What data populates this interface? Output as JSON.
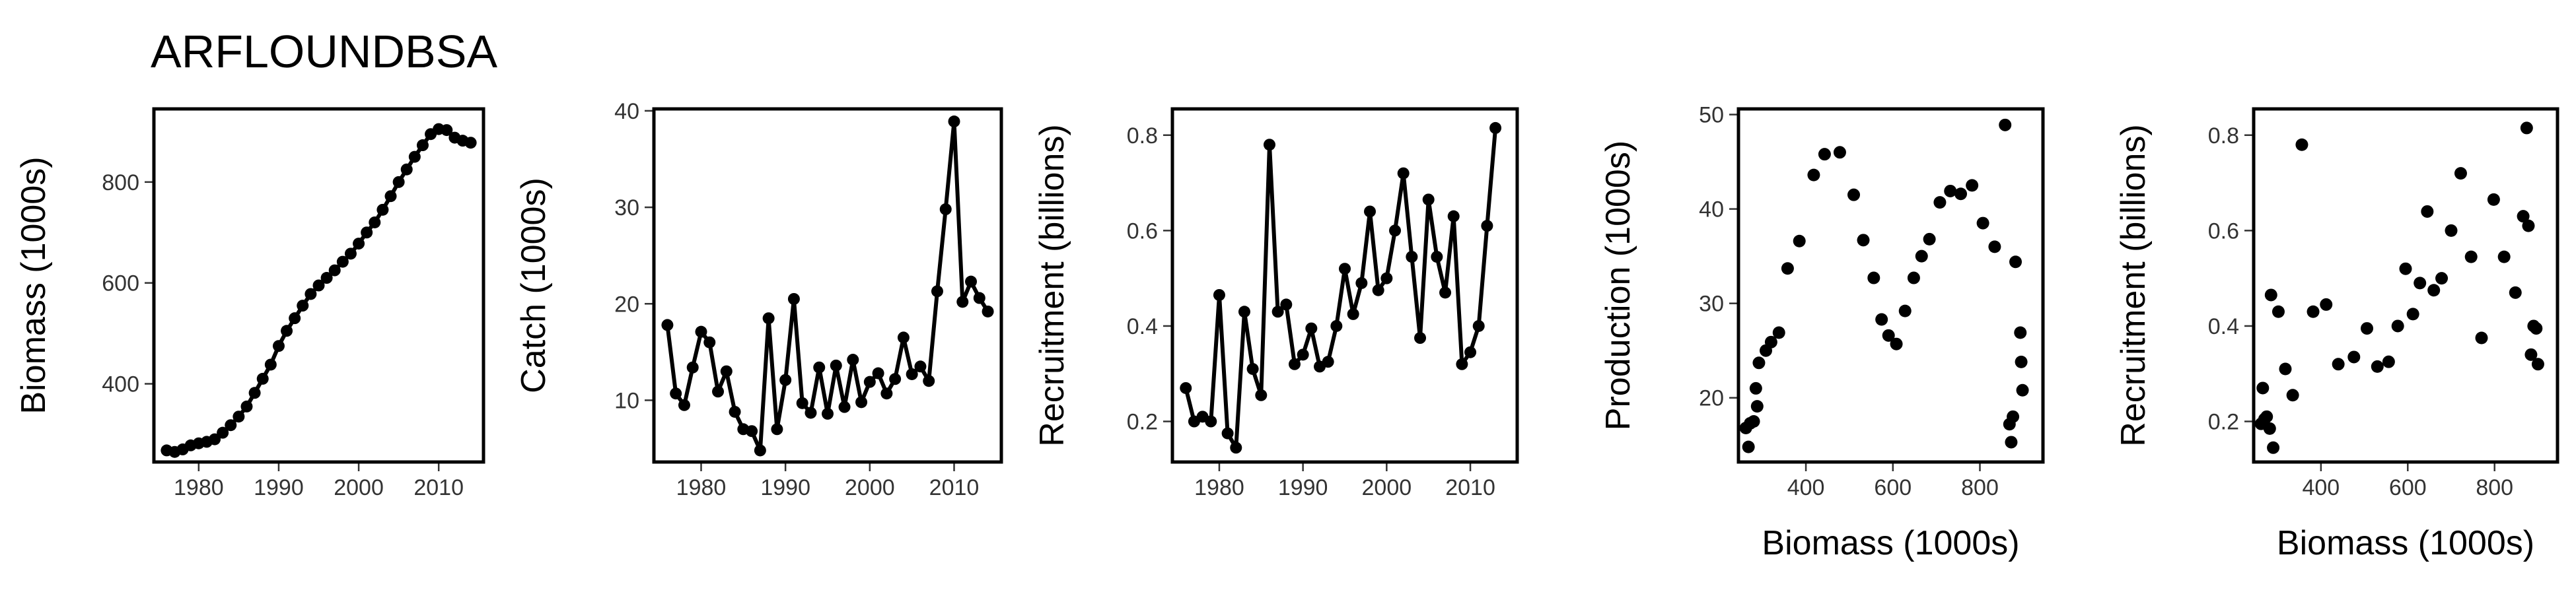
{
  "figure": {
    "title": "ARFLOUNDBSA"
  },
  "chart_data": [
    {
      "type": "line",
      "title": "",
      "xlabel": "",
      "ylabel": "Biomass (1000s)",
      "xlim": [
        1974.4,
        2015.6
      ],
      "ylim": [
        245,
        945
      ],
      "xticks": [
        1980,
        1990,
        2000,
        2010
      ],
      "yticks": [
        400,
        600,
        800
      ],
      "markers": true,
      "x": [
        1976,
        1977,
        1978,
        1979,
        1980,
        1981,
        1982,
        1983,
        1984,
        1985,
        1986,
        1987,
        1988,
        1989,
        1990,
        1991,
        1992,
        1993,
        1994,
        1995,
        1996,
        1997,
        1998,
        1999,
        2000,
        2001,
        2002,
        2003,
        2004,
        2005,
        2006,
        2007,
        2008,
        2009,
        2010,
        2011,
        2012,
        2013,
        2014
      ],
      "y": [
        268,
        265,
        270,
        278,
        282,
        285,
        290,
        303,
        318,
        335,
        355,
        382,
        410,
        438,
        475,
        505,
        530,
        555,
        578,
        595,
        610,
        625,
        642,
        658,
        678,
        700,
        720,
        745,
        772,
        800,
        825,
        850,
        873,
        895,
        905,
        903,
        888,
        882,
        878
      ]
    },
    {
      "type": "line",
      "title": "",
      "xlabel": "",
      "ylabel": "Catch (1000s)",
      "xlim": [
        1974.4,
        2015.6
      ],
      "ylim": [
        3.6,
        40.2
      ],
      "xticks": [
        1980,
        1990,
        2000,
        2010
      ],
      "yticks": [
        10,
        20,
        30,
        40
      ],
      "markers": true,
      "x": [
        1976,
        1977,
        1978,
        1979,
        1980,
        1981,
        1982,
        1983,
        1984,
        1985,
        1986,
        1987,
        1988,
        1989,
        1990,
        1991,
        1992,
        1993,
        1994,
        1995,
        1996,
        1997,
        1998,
        1999,
        2000,
        2001,
        2002,
        2003,
        2004,
        2005,
        2006,
        2007,
        2008,
        2009,
        2010,
        2011,
        2012,
        2013,
        2014
      ],
      "y": [
        17.8,
        10.7,
        9.5,
        13.4,
        17.1,
        16,
        10.9,
        13,
        8.8,
        7,
        6.8,
        4.8,
        18.5,
        7,
        12.1,
        20.5,
        9.7,
        8.7,
        13.4,
        8.6,
        13.6,
        9.3,
        14.2,
        9.8,
        11.9,
        12.8,
        10.7,
        12.2,
        16.5,
        12.7,
        13.5,
        12,
        21.3,
        29.8,
        38.9,
        20.2,
        22.3,
        20.6,
        19.2
      ]
    },
    {
      "type": "line",
      "title": "",
      "xlabel": "",
      "ylabel": "Recruitment (billions)",
      "xlim": [
        1974.4,
        2015.6
      ],
      "ylim": [
        0.115,
        0.855
      ],
      "xticks": [
        1980,
        1990,
        2000,
        2010
      ],
      "yticks": [
        0.2,
        0.4,
        0.6,
        0.8
      ],
      "markers": true,
      "x": [
        1976,
        1977,
        1978,
        1979,
        1980,
        1981,
        1982,
        1983,
        1984,
        1985,
        1986,
        1987,
        1988,
        1989,
        1990,
        1991,
        1992,
        1993,
        1994,
        1995,
        1996,
        1997,
        1998,
        1999,
        2000,
        2001,
        2002,
        2003,
        2004,
        2005,
        2006,
        2007,
        2008,
        2009,
        2010,
        2011,
        2012,
        2013
      ],
      "y": [
        0.27,
        0.2,
        0.21,
        0.2,
        0.465,
        0.175,
        0.145,
        0.43,
        0.31,
        0.255,
        0.78,
        0.43,
        0.445,
        0.32,
        0.34,
        0.395,
        0.315,
        0.325,
        0.4,
        0.52,
        0.425,
        0.49,
        0.64,
        0.475,
        0.5,
        0.6,
        0.72,
        0.545,
        0.375,
        0.665,
        0.545,
        0.47,
        0.63,
        0.32,
        0.345,
        0.4,
        0.61,
        0.815
      ]
    },
    {
      "type": "scatter",
      "title": "",
      "xlabel": "Biomass (1000s)",
      "ylabel": "Production (1000s)",
      "xlim": [
        245,
        945
      ],
      "ylim": [
        13.2,
        50.6
      ],
      "xticks": [
        400,
        600,
        800
      ],
      "yticks": [
        20,
        30,
        40,
        50
      ],
      "points": [
        [
          262,
          16.8
        ],
        [
          268,
          14.8
        ],
        [
          272,
          17.3
        ],
        [
          280,
          17.5
        ],
        [
          285,
          21
        ],
        [
          288,
          19.1
        ],
        [
          292,
          23.7
        ],
        [
          308,
          25
        ],
        [
          320,
          25.9
        ],
        [
          338,
          26.9
        ],
        [
          358,
          33.7
        ],
        [
          385,
          36.6
        ],
        [
          418,
          43.6
        ],
        [
          443,
          45.8
        ],
        [
          478,
          46
        ],
        [
          510,
          41.5
        ],
        [
          532,
          36.7
        ],
        [
          556,
          32.7
        ],
        [
          574,
          28.3
        ],
        [
          590,
          26.6
        ],
        [
          608,
          25.7
        ],
        [
          628,
          29.2
        ],
        [
          648,
          32.7
        ],
        [
          666,
          35
        ],
        [
          684,
          36.8
        ],
        [
          708,
          40.7
        ],
        [
          732,
          41.9
        ],
        [
          756,
          41.6
        ],
        [
          782,
          42.5
        ],
        [
          807,
          38.5
        ],
        [
          834,
          36
        ],
        [
          858,
          48.9
        ],
        [
          868,
          17.2
        ],
        [
          872,
          15.3
        ],
        [
          876,
          18
        ],
        [
          882,
          34.4
        ],
        [
          893,
          26.9
        ],
        [
          895,
          23.8
        ],
        [
          898,
          20.8
        ]
      ]
    },
    {
      "type": "scatter",
      "title": "",
      "xlabel": "Biomass (1000s)",
      "ylabel": "Recruitment (billions)",
      "xlim": [
        245,
        945
      ],
      "ylim": [
        0.115,
        0.855
      ],
      "xticks": [
        400,
        600,
        800
      ],
      "yticks": [
        0.2,
        0.4,
        0.6,
        0.8
      ],
      "points": [
        [
          262,
          0.195
        ],
        [
          266,
          0.27
        ],
        [
          270,
          0.205
        ],
        [
          275,
          0.21
        ],
        [
          282,
          0.185
        ],
        [
          285,
          0.465
        ],
        [
          290,
          0.145
        ],
        [
          302,
          0.43
        ],
        [
          318,
          0.31
        ],
        [
          335,
          0.255
        ],
        [
          356,
          0.78
        ],
        [
          382,
          0.43
        ],
        [
          412,
          0.445
        ],
        [
          440,
          0.32
        ],
        [
          476,
          0.335
        ],
        [
          506,
          0.395
        ],
        [
          530,
          0.315
        ],
        [
          556,
          0.325
        ],
        [
          577,
          0.4
        ],
        [
          595,
          0.52
        ],
        [
          612,
          0.425
        ],
        [
          628,
          0.49
        ],
        [
          645,
          0.64
        ],
        [
          660,
          0.475
        ],
        [
          678,
          0.5
        ],
        [
          700,
          0.6
        ],
        [
          722,
          0.72
        ],
        [
          746,
          0.545
        ],
        [
          770,
          0.375
        ],
        [
          798,
          0.665
        ],
        [
          822,
          0.545
        ],
        [
          848,
          0.47
        ],
        [
          866,
          0.63
        ],
        [
          874,
          0.815
        ],
        [
          878,
          0.61
        ],
        [
          884,
          0.34
        ],
        [
          890,
          0.4
        ],
        [
          896,
          0.395
        ],
        [
          900,
          0.32
        ]
      ]
    }
  ]
}
